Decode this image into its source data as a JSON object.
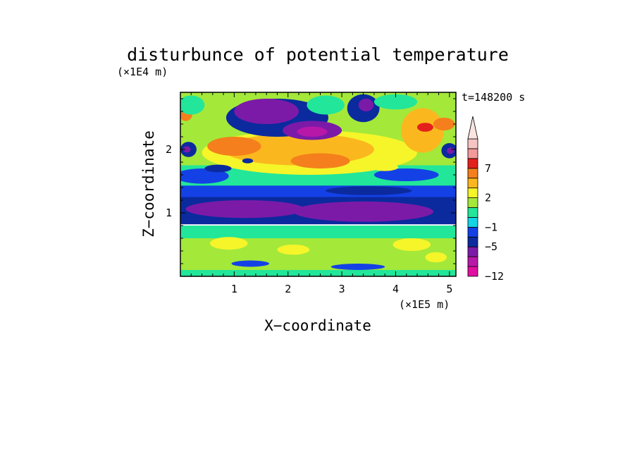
{
  "chart_data": {
    "type": "heatmap",
    "title": "disturbunce of potential temperature",
    "time_label": "t=148200 s",
    "xlabel": "X−coordinate",
    "ylabel": "Z−coordinate",
    "x_scale_label": "(×1E5 m)",
    "y_scale_label": "(×1E4 m)",
    "x_ticks": [
      "1",
      "2",
      "3",
      "4",
      "5"
    ],
    "y_ticks": [
      "1",
      "2"
    ],
    "xlim": [
      0,
      5.12
    ],
    "ylim": [
      0,
      2.9
    ],
    "colorbar": {
      "levels": [
        -12,
        -9,
        -7,
        -5,
        -3,
        -1,
        0,
        1,
        2,
        3,
        5,
        7,
        9,
        11
      ],
      "labels": [
        "−12",
        "−5",
        "−1",
        "2",
        "7"
      ],
      "label_levels": [
        -12,
        -5,
        -1,
        2,
        7
      ],
      "colors": [
        "#e00fa0",
        "#b818a8",
        "#7c1aa8",
        "#0b2a9e",
        "#1441e6",
        "#12d4e6",
        "#22e69a",
        "#a4e83a",
        "#f5f52a",
        "#fbb81e",
        "#f47f1c",
        "#e4201c",
        "#f29a9a",
        "#f7c4c4"
      ],
      "extend_max": true,
      "extend_color": "#f9e4e0"
    },
    "regions": [
      {
        "x": 0.0,
        "z": 0.0,
        "w": 5.12,
        "h": 0.12,
        "value": 0.5
      },
      {
        "x": 0.0,
        "z": 0.1,
        "w": 5.12,
        "h": 0.55,
        "value": 1.5
      },
      {
        "x": 0.0,
        "z": 0.6,
        "w": 5.12,
        "h": 0.2,
        "value": 0.0
      },
      {
        "x": 0.0,
        "z": 0.82,
        "w": 5.12,
        "h": 0.45,
        "value": -4.0
      },
      {
        "x": 0.0,
        "z": 1.25,
        "w": 5.12,
        "h": 0.2,
        "value": -1.5
      },
      {
        "x": 0.0,
        "z": 1.43,
        "w": 5.12,
        "h": 0.32,
        "value": 0.0
      },
      {
        "x": 0.0,
        "z": 1.75,
        "w": 5.12,
        "h": 1.15,
        "value": 1.5
      }
    ],
    "blobs": [
      {
        "x": 1.2,
        "z": 1.06,
        "rx": 1.1,
        "rz": 0.14,
        "value": -5.5
      },
      {
        "x": 3.4,
        "z": 1.02,
        "rx": 1.3,
        "rz": 0.16,
        "value": -5.5
      },
      {
        "x": 0.9,
        "z": 0.52,
        "rx": 0.35,
        "rz": 0.1,
        "value": 2.5
      },
      {
        "x": 2.1,
        "z": 0.42,
        "rx": 0.3,
        "rz": 0.08,
        "value": 2.5
      },
      {
        "x": 4.3,
        "z": 0.5,
        "rx": 0.35,
        "rz": 0.1,
        "value": 2.5
      },
      {
        "x": 4.75,
        "z": 0.3,
        "rx": 0.2,
        "rz": 0.08,
        "value": 2.5
      },
      {
        "x": 1.3,
        "z": 0.2,
        "rx": 0.35,
        "rz": 0.05,
        "value": -1.5
      },
      {
        "x": 3.3,
        "z": 0.15,
        "rx": 0.5,
        "rz": 0.05,
        "value": -1.5
      },
      {
        "x": 0.4,
        "z": 1.58,
        "rx": 0.5,
        "rz": 0.12,
        "value": -1.5
      },
      {
        "x": 4.2,
        "z": 1.6,
        "rx": 0.6,
        "rz": 0.1,
        "value": -1.5
      },
      {
        "x": 3.5,
        "z": 1.35,
        "rx": 0.8,
        "rz": 0.07,
        "value": -3.5
      },
      {
        "x": 2.4,
        "z": 1.95,
        "rx": 2.0,
        "rz": 0.35,
        "value": 2.8
      },
      {
        "x": 2.2,
        "z": 2.0,
        "rx": 1.4,
        "rz": 0.25,
        "value": 4.5
      },
      {
        "x": 1.0,
        "z": 2.05,
        "rx": 0.5,
        "rz": 0.15,
        "value": 6.0
      },
      {
        "x": 2.6,
        "z": 1.82,
        "rx": 0.55,
        "rz": 0.12,
        "value": 6.0
      },
      {
        "x": 1.8,
        "z": 2.5,
        "rx": 0.95,
        "rz": 0.3,
        "value": -4.0
      },
      {
        "x": 1.6,
        "z": 2.6,
        "rx": 0.6,
        "rz": 0.2,
        "value": -5.5
      },
      {
        "x": 2.45,
        "z": 2.3,
        "rx": 0.55,
        "rz": 0.15,
        "value": -5.5
      },
      {
        "x": 2.45,
        "z": 2.28,
        "rx": 0.28,
        "rz": 0.08,
        "value": -8.0
      },
      {
        "x": 3.4,
        "z": 2.65,
        "rx": 0.3,
        "rz": 0.22,
        "value": -4.0
      },
      {
        "x": 3.45,
        "z": 2.7,
        "rx": 0.14,
        "rz": 0.1,
        "value": -5.5
      },
      {
        "x": 0.15,
        "z": 2.0,
        "rx": 0.15,
        "rz": 0.12,
        "value": -4.0
      },
      {
        "x": 0.12,
        "z": 2.0,
        "rx": 0.07,
        "rz": 0.05,
        "value": -5.5
      },
      {
        "x": 5.0,
        "z": 1.98,
        "rx": 0.15,
        "rz": 0.12,
        "value": -4.0
      },
      {
        "x": 5.02,
        "z": 1.98,
        "rx": 0.07,
        "rz": 0.05,
        "value": -5.5
      },
      {
        "x": 0.1,
        "z": 2.55,
        "rx": 0.12,
        "rz": 0.1,
        "value": 6.0
      },
      {
        "x": 4.5,
        "z": 2.3,
        "rx": 0.4,
        "rz": 0.35,
        "value": 4.5
      },
      {
        "x": 4.55,
        "z": 2.35,
        "rx": 0.15,
        "rz": 0.07,
        "value": 8.0
      },
      {
        "x": 4.9,
        "z": 2.4,
        "rx": 0.2,
        "rz": 0.1,
        "value": 6.0
      },
      {
        "x": 0.2,
        "z": 2.7,
        "rx": 0.25,
        "rz": 0.15,
        "value": 0.0
      },
      {
        "x": 2.7,
        "z": 2.7,
        "rx": 0.35,
        "rz": 0.15,
        "value": 0.0
      },
      {
        "x": 4.0,
        "z": 2.75,
        "rx": 0.4,
        "rz": 0.12,
        "value": 0.0
      },
      {
        "x": 0.7,
        "z": 1.7,
        "rx": 0.25,
        "rz": 0.06,
        "value": -4.0
      },
      {
        "x": 1.25,
        "z": 1.82,
        "rx": 0.1,
        "rz": 0.04,
        "value": -4.0
      },
      {
        "x": 3.8,
        "z": 1.72,
        "rx": 0.25,
        "rz": 0.06,
        "value": 2.5
      }
    ]
  }
}
